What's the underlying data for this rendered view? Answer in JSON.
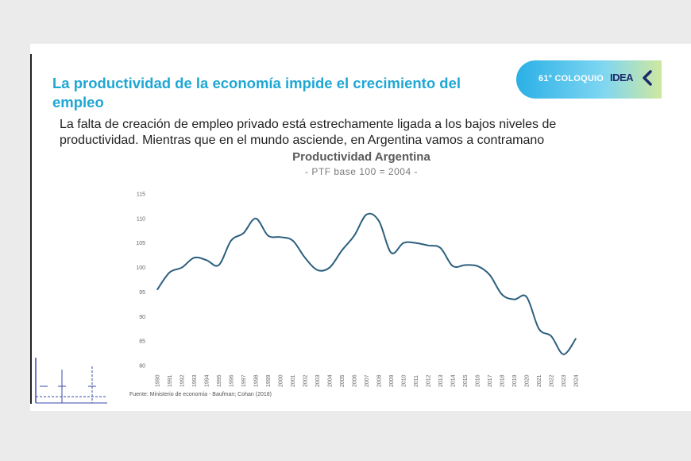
{
  "header": {
    "title": "La productividad de la economía impide el crecimiento del empleo",
    "subtitle": "La falta de creación de empleo privado está estrechamente ligada a los bajos niveles de productividad. Mientras que en el mundo asciende, en Argentina vamos a contramano"
  },
  "badge": {
    "label": "61° COLOQUIO",
    "logo": "IDEA",
    "logo_icon": "chevron-left-icon"
  },
  "source": "Fuente: Ministerio de economía - Baufman; Cohan (2018)",
  "colors": {
    "title": "#1fa7d4",
    "line": "#2c5f7e",
    "badge_start": "#2ab0e6",
    "badge_end": "#cfe8a0"
  },
  "chart_data": {
    "type": "line",
    "title": "Productividad Argentina",
    "subtitle": "- PTF base 100 = 2004 -",
    "xlabel": "",
    "ylabel": "",
    "ylim": [
      80,
      115
    ],
    "yticks": [
      80,
      85,
      90,
      95,
      100,
      105,
      110,
      115
    ],
    "grid": false,
    "x": [
      "1990",
      "1991",
      "1992",
      "1993",
      "1994",
      "1995",
      "1996",
      "1997",
      "1998",
      "1999",
      "2000",
      "2001",
      "2002",
      "2003",
      "2004",
      "2005",
      "2006",
      "2007",
      "2008",
      "2009",
      "2010",
      "2011",
      "2012",
      "2013",
      "2014",
      "2015",
      "2016",
      "2017",
      "2018",
      "2019",
      "2020",
      "2021",
      "2022",
      "2023",
      "2024"
    ],
    "series": [
      {
        "values": [
          95.5,
          99,
          100,
          102,
          101.5,
          100.5,
          105.5,
          107,
          110,
          106.5,
          106.2,
          105.5,
          102,
          99.5,
          100,
          103.5,
          106.5,
          110.8,
          109.5,
          103,
          105,
          105,
          104.5,
          104,
          100.3,
          100.5,
          100.3,
          98.5,
          94.5,
          93.5,
          94,
          87.5,
          86,
          82.3,
          85.5
        ]
      }
    ]
  }
}
